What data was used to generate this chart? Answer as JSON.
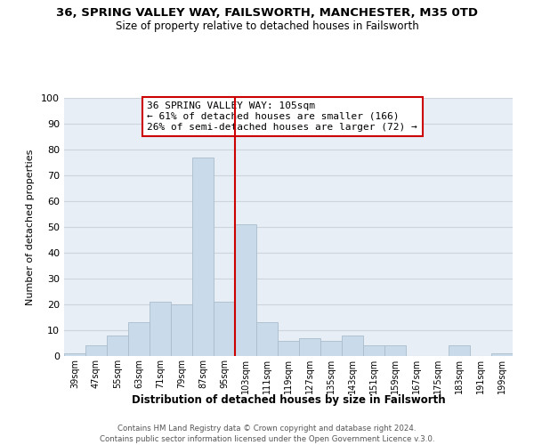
{
  "title": "36, SPRING VALLEY WAY, FAILSWORTH, MANCHESTER, M35 0TD",
  "subtitle": "Size of property relative to detached houses in Failsworth",
  "xlabel": "Distribution of detached houses by size in Failsworth",
  "ylabel": "Number of detached properties",
  "bar_color": "#c9daea",
  "bar_edge_color": "#aabccc",
  "background_color": "#ffffff",
  "plot_bg_color": "#e8eef5",
  "grid_color": "#ccd4de",
  "categories": [
    "39sqm",
    "47sqm",
    "55sqm",
    "63sqm",
    "71sqm",
    "79sqm",
    "87sqm",
    "95sqm",
    "103sqm",
    "111sqm",
    "119sqm",
    "127sqm",
    "135sqm",
    "143sqm",
    "151sqm",
    "159sqm",
    "167sqm",
    "175sqm",
    "183sqm",
    "191sqm",
    "199sqm"
  ],
  "values": [
    1,
    4,
    8,
    13,
    21,
    20,
    77,
    21,
    51,
    13,
    6,
    7,
    6,
    8,
    4,
    4,
    0,
    0,
    4,
    0,
    1
  ],
  "ylim": [
    0,
    100
  ],
  "yticks": [
    0,
    10,
    20,
    30,
    40,
    50,
    60,
    70,
    80,
    90,
    100
  ],
  "vline_color": "#cc0000",
  "annotation_title": "36 SPRING VALLEY WAY: 105sqm",
  "annotation_line1": "← 61% of detached houses are smaller (166)",
  "annotation_line2": "26% of semi-detached houses are larger (72) →",
  "annotation_box_color": "#ffffff",
  "annotation_box_edge": "#cc0000",
  "footer_line1": "Contains HM Land Registry data © Crown copyright and database right 2024.",
  "footer_line2": "Contains public sector information licensed under the Open Government Licence v.3.0."
}
